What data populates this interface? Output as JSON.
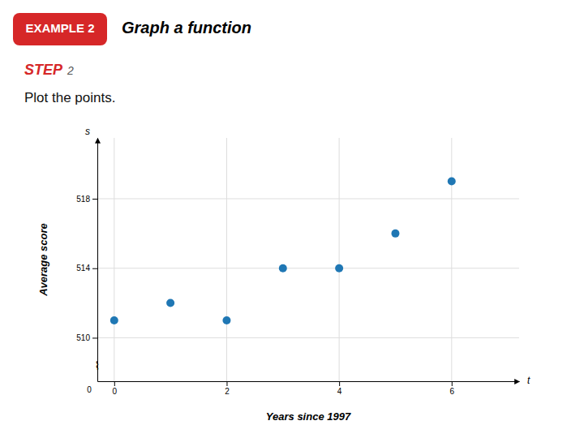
{
  "chart_data": {
    "type": "scatter",
    "title": "Graph a function",
    "annotations": [
      "EXAMPLE 2",
      "STEP",
      "2",
      "Plot the points.",
      "0",
      "s",
      "t",
      "⌇"
    ],
    "x": [
      0,
      1,
      2,
      3,
      4,
      5,
      6
    ],
    "values": [
      511,
      512,
      511,
      514,
      514,
      516,
      519
    ],
    "xlabel": "Years since 1997",
    "ylabel": "Average score",
    "xlim": [
      -0.3,
      7.2
    ],
    "ylim": [
      507.5,
      521.5
    ],
    "xticks": [
      0,
      2,
      4,
      6
    ],
    "yticks": [
      510,
      514,
      518
    ],
    "grid": true
  }
}
